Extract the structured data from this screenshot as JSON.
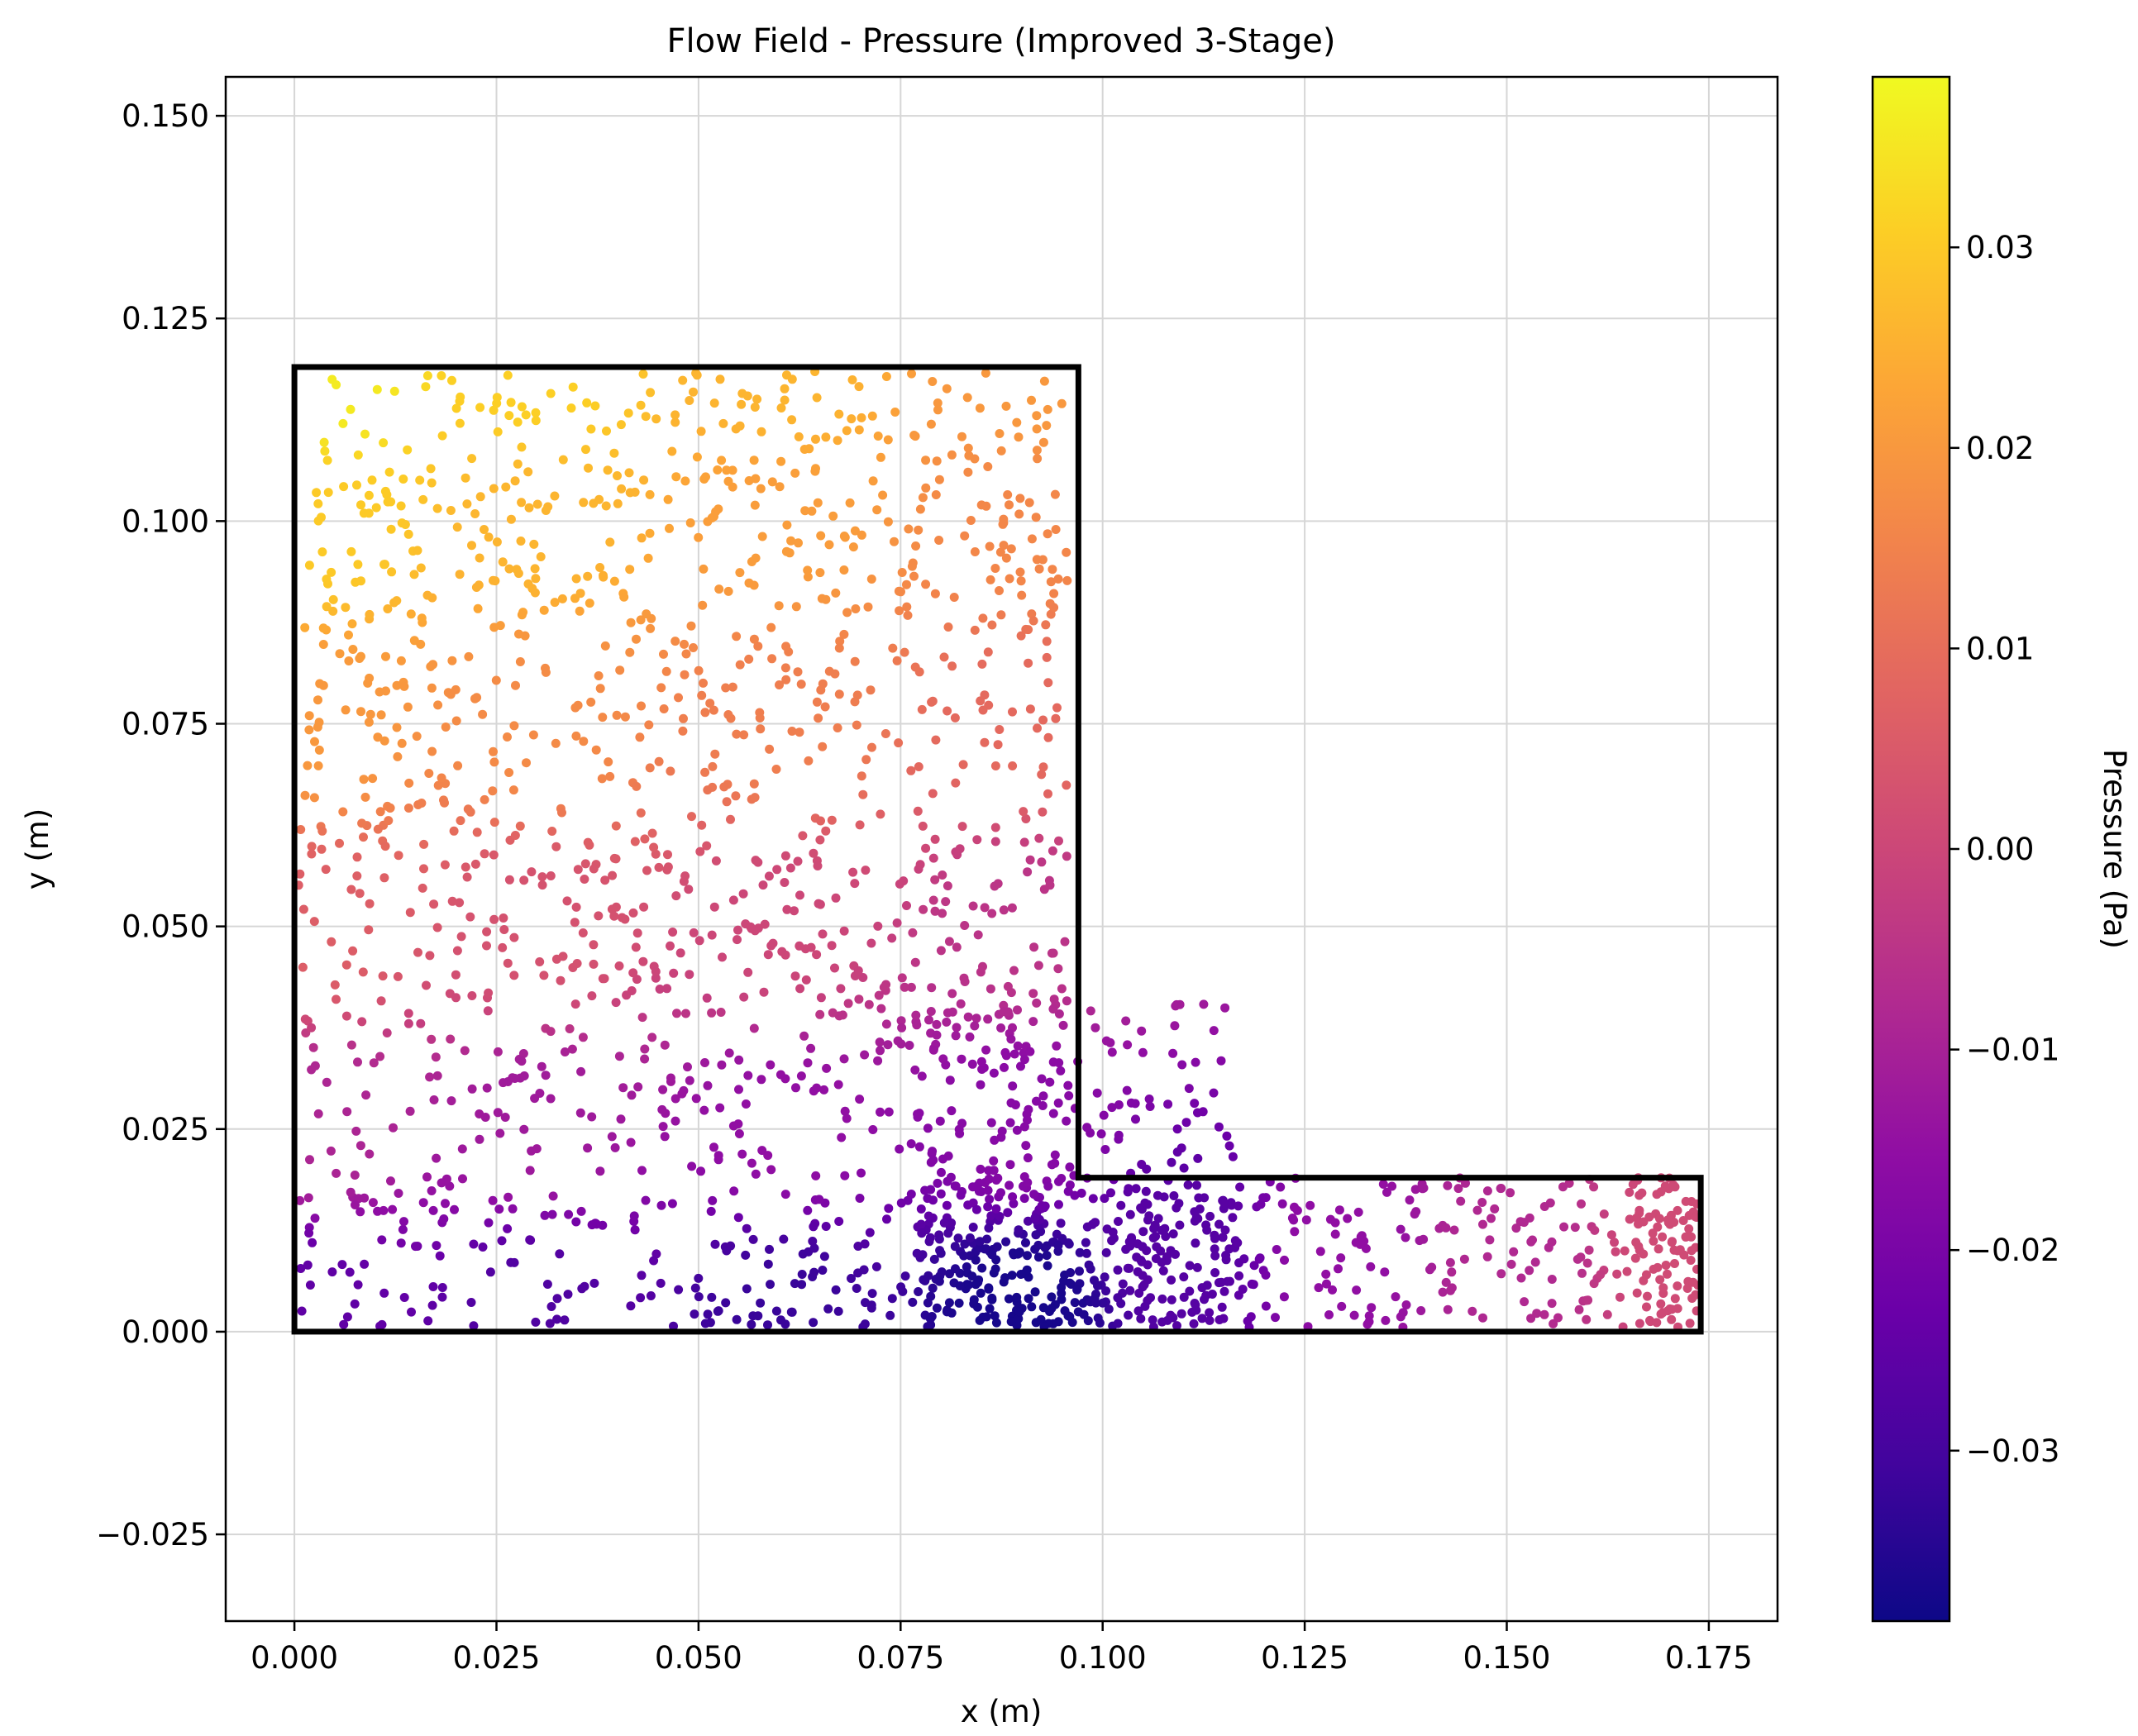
{
  "chart_data": {
    "type": "scatter",
    "title": "Flow Field - Pressure (Improved 3-Stage)",
    "xlabel": "x (m)",
    "ylabel": "y (m)",
    "xlim": [
      -0.0085,
      0.1835
    ],
    "ylim": [
      -0.0357,
      0.1548
    ],
    "x_ticks": [
      "0.000",
      "0.025",
      "0.050",
      "0.075",
      "0.100",
      "0.125",
      "0.150",
      "0.175"
    ],
    "y_ticks": [
      "−0.025",
      "0.000",
      "0.025",
      "0.050",
      "0.075",
      "0.100",
      "0.125",
      "0.150"
    ],
    "x_tick_values": [
      0,
      0.025,
      0.05,
      0.075,
      0.1,
      0.125,
      0.15,
      0.175
    ],
    "y_tick_values": [
      -0.025,
      0,
      0.025,
      0.05,
      0.075,
      0.1,
      0.125,
      0.15
    ],
    "grid": true,
    "colormap": "plasma",
    "colorbar": {
      "label": "Pressure (Pa)",
      "range": [
        -0.0385,
        0.0385
      ],
      "ticks": [
        "−0.03",
        "−0.02",
        "−0.01",
        "0.00",
        "0.01",
        "0.02",
        "0.03"
      ],
      "tick_values": [
        -0.03,
        -0.02,
        -0.01,
        0,
        0.01,
        0.02,
        0.03
      ]
    },
    "boundary": {
      "color": "#000000",
      "vertices": [
        [
          0,
          0
        ],
        [
          0.174,
          0
        ],
        [
          0.174,
          0.019
        ],
        [
          0.097,
          0.019
        ],
        [
          0.097,
          0.119
        ],
        [
          0,
          0.119
        ]
      ]
    },
    "pressure_field_samples": {
      "description_units": "Pa",
      "points": [
        [
          0.003,
          0.117,
          0.036
        ],
        [
          0.03,
          0.117,
          0.031
        ],
        [
          0.06,
          0.117,
          0.026
        ],
        [
          0.09,
          0.117,
          0.02
        ],
        [
          0.003,
          0.1,
          0.03
        ],
        [
          0.03,
          0.1,
          0.026
        ],
        [
          0.06,
          0.1,
          0.021
        ],
        [
          0.09,
          0.1,
          0.016
        ],
        [
          0.003,
          0.075,
          0.02
        ],
        [
          0.03,
          0.075,
          0.017
        ],
        [
          0.06,
          0.075,
          0.014
        ],
        [
          0.09,
          0.075,
          0.009
        ],
        [
          0.003,
          0.05,
          0.006
        ],
        [
          0.03,
          0.05,
          0.003
        ],
        [
          0.06,
          0.05,
          0.0
        ],
        [
          0.09,
          0.05,
          -0.005
        ],
        [
          0.003,
          0.025,
          -0.009
        ],
        [
          0.03,
          0.025,
          -0.012
        ],
        [
          0.06,
          0.025,
          -0.015
        ],
        [
          0.09,
          0.025,
          -0.017
        ],
        [
          0.003,
          0.003,
          -0.025
        ],
        [
          0.03,
          0.003,
          -0.028
        ],
        [
          0.06,
          0.003,
          -0.032
        ],
        [
          0.09,
          0.003,
          -0.037
        ],
        [
          0.11,
          0.01,
          -0.027
        ],
        [
          0.13,
          0.01,
          -0.015
        ],
        [
          0.15,
          0.01,
          -0.008
        ],
        [
          0.172,
          0.01,
          0.001
        ]
      ]
    }
  }
}
